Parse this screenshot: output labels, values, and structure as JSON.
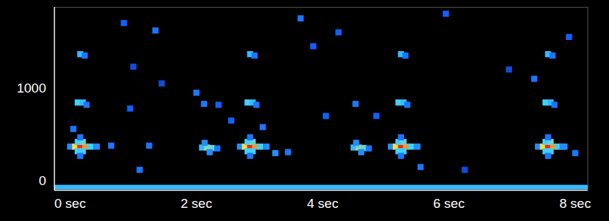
{
  "chart_data": {
    "type": "spectrogram",
    "xlim": [
      0,
      8.45
    ],
    "xticks": [
      {
        "value": 0,
        "label": "0 sec"
      },
      {
        "value": 2,
        "label": "2 sec"
      },
      {
        "value": 4,
        "label": "4 sec"
      },
      {
        "value": 6,
        "label": "6 sec"
      },
      {
        "value": 8,
        "label": "8 sec"
      }
    ],
    "ylim": [
      -100,
      1870
    ],
    "yticks": [
      0,
      1000
    ],
    "cell_range": [
      0,
      1
    ],
    "floor_band": {
      "f1": -95,
      "f2": -45,
      "v": 0.45
    },
    "cells": [
      [
        0.25,
        370,
        0.35
      ],
      [
        0.33,
        370,
        0.75
      ],
      [
        0.41,
        370,
        1
      ],
      [
        0.49,
        370,
        0.85
      ],
      [
        0.57,
        370,
        0.5
      ],
      [
        0.67,
        370,
        0.35
      ],
      [
        0.37,
        420,
        0.5
      ],
      [
        0.45,
        420,
        0.55
      ],
      [
        0.37,
        320,
        0.5
      ],
      [
        0.45,
        320,
        0.5
      ],
      [
        0.41,
        470,
        0.3
      ],
      [
        0.41,
        270,
        0.3
      ],
      [
        0.37,
        845,
        0.5
      ],
      [
        0.45,
        845,
        0.45
      ],
      [
        0.51,
        820,
        0.3
      ],
      [
        0.41,
        1365,
        0.45
      ],
      [
        0.48,
        1350,
        0.3
      ],
      [
        2.94,
        370,
        0.35
      ],
      [
        3.02,
        370,
        0.75
      ],
      [
        3.1,
        370,
        1
      ],
      [
        3.18,
        370,
        0.85
      ],
      [
        3.26,
        370,
        0.5
      ],
      [
        3.36,
        370,
        0.35
      ],
      [
        3.06,
        420,
        0.5
      ],
      [
        3.14,
        420,
        0.55
      ],
      [
        3.06,
        320,
        0.5
      ],
      [
        3.14,
        320,
        0.5
      ],
      [
        3.1,
        470,
        0.3
      ],
      [
        3.1,
        270,
        0.3
      ],
      [
        3.06,
        845,
        0.5
      ],
      [
        3.14,
        845,
        0.45
      ],
      [
        3.2,
        820,
        0.3
      ],
      [
        3.1,
        1365,
        0.45
      ],
      [
        3.17,
        1350,
        0.3
      ],
      [
        5.33,
        370,
        0.35
      ],
      [
        5.41,
        370,
        0.75
      ],
      [
        5.49,
        370,
        1
      ],
      [
        5.57,
        370,
        0.85
      ],
      [
        5.65,
        370,
        0.5
      ],
      [
        5.75,
        370,
        0.35
      ],
      [
        5.45,
        420,
        0.5
      ],
      [
        5.53,
        420,
        0.55
      ],
      [
        5.45,
        320,
        0.5
      ],
      [
        5.53,
        320,
        0.5
      ],
      [
        5.49,
        470,
        0.3
      ],
      [
        5.49,
        270,
        0.3
      ],
      [
        5.45,
        845,
        0.5
      ],
      [
        5.53,
        845,
        0.45
      ],
      [
        5.59,
        820,
        0.3
      ],
      [
        5.49,
        1365,
        0.45
      ],
      [
        5.56,
        1350,
        0.3
      ],
      [
        7.66,
        370,
        0.35
      ],
      [
        7.74,
        370,
        0.75
      ],
      [
        7.82,
        370,
        1
      ],
      [
        7.9,
        370,
        0.85
      ],
      [
        7.98,
        370,
        0.5
      ],
      [
        8.08,
        370,
        0.35
      ],
      [
        7.78,
        420,
        0.5
      ],
      [
        7.86,
        420,
        0.55
      ],
      [
        7.78,
        320,
        0.5
      ],
      [
        7.86,
        320,
        0.5
      ],
      [
        7.82,
        470,
        0.3
      ],
      [
        7.82,
        270,
        0.3
      ],
      [
        7.78,
        845,
        0.5
      ],
      [
        7.86,
        845,
        0.45
      ],
      [
        7.92,
        820,
        0.3
      ],
      [
        7.82,
        1365,
        0.45
      ],
      [
        7.89,
        1350,
        0.3
      ],
      [
        2.34,
        360,
        0.45
      ],
      [
        2.42,
        360,
        0.6
      ],
      [
        2.5,
        355,
        0.55
      ],
      [
        2.38,
        410,
        0.35
      ],
      [
        2.46,
        310,
        0.35
      ],
      [
        2.58,
        350,
        0.3
      ],
      [
        2.37,
        830,
        0.3
      ],
      [
        4.74,
        360,
        0.45
      ],
      [
        4.82,
        360,
        0.6
      ],
      [
        4.9,
        355,
        0.55
      ],
      [
        4.78,
        410,
        0.35
      ],
      [
        4.86,
        310,
        0.35
      ],
      [
        4.98,
        350,
        0.3
      ],
      [
        4.77,
        830,
        0.3
      ],
      [
        0.3,
        560,
        0.3
      ],
      [
        1.1,
        1700,
        0.25
      ],
      [
        1.2,
        780,
        0.25
      ],
      [
        1.25,
        1230,
        0.2
      ],
      [
        1.35,
        120,
        0.3
      ],
      [
        1.6,
        1620,
        0.3
      ],
      [
        1.7,
        1050,
        0.2
      ],
      [
        2.25,
        950,
        0.3
      ],
      [
        2.6,
        820,
        0.25
      ],
      [
        2.8,
        650,
        0.25
      ],
      [
        3.3,
        580,
        0.3
      ],
      [
        3.5,
        300,
        0.35
      ],
      [
        3.7,
        310,
        0.3
      ],
      [
        3.9,
        1750,
        0.3
      ],
      [
        4.1,
        1450,
        0.25
      ],
      [
        4.3,
        700,
        0.25
      ],
      [
        4.5,
        1600,
        0.25
      ],
      [
        5.1,
        700,
        0.25
      ],
      [
        5.8,
        150,
        0.3
      ],
      [
        6.5,
        120,
        0.2
      ],
      [
        7.2,
        1200,
        0.2
      ],
      [
        7.6,
        1100,
        0.3
      ],
      [
        8.05,
        370,
        0.35
      ],
      [
        8.25,
        300,
        0.3
      ],
      [
        8.15,
        1550,
        0.25
      ],
      [
        0.9,
        380,
        0.3
      ],
      [
        1.5,
        380,
        0.3
      ],
      [
        6.2,
        1800,
        0.25
      ]
    ]
  }
}
